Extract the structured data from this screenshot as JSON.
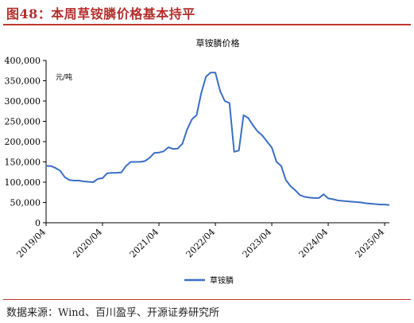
{
  "header": {
    "title": "图48：本周草铵膦价格基本持平"
  },
  "footer": {
    "source": "数据来源：Wind、百川盈孚、开源证券研究所"
  },
  "colors": {
    "series": "#3a6fc4",
    "accent": "#b32e2c"
  },
  "chart_data": {
    "type": "line",
    "title": "草铵膦价格",
    "unit_label": "元/吨",
    "ylim": [
      0,
      400000
    ],
    "y_ticks": [
      0,
      50000,
      100000,
      150000,
      200000,
      250000,
      300000,
      350000,
      400000
    ],
    "y_tick_labels": [
      "0",
      "50,000",
      "100,000",
      "150,000",
      "200,000",
      "250,000",
      "300,000",
      "350,000",
      "400,000"
    ],
    "x_range": [
      "2019-04",
      "2025-05"
    ],
    "x_ticks": [
      "2019-04",
      "2020-04",
      "2021-04",
      "2022-04",
      "2023-04",
      "2024-04",
      "2025-04"
    ],
    "x_tick_labels": [
      "2019/04",
      "2020/04",
      "2021/04",
      "2022/04",
      "2023/04",
      "2024/04",
      "2025/04"
    ],
    "legend_position": "bottom-center",
    "grid": false,
    "series": [
      {
        "name": "草铵膦",
        "points": [
          [
            "2019-04",
            140000
          ],
          [
            "2019-05",
            140000
          ],
          [
            "2019-06",
            135000
          ],
          [
            "2019-07",
            128000
          ],
          [
            "2019-08",
            112000
          ],
          [
            "2019-09",
            105000
          ],
          [
            "2019-10",
            104000
          ],
          [
            "2019-11",
            104000
          ],
          [
            "2019-12",
            102000
          ],
          [
            "2020-01",
            101000
          ],
          [
            "2020-02",
            100000
          ],
          [
            "2020-03",
            108000
          ],
          [
            "2020-04",
            110000
          ],
          [
            "2020-05",
            122000
          ],
          [
            "2020-06",
            123000
          ],
          [
            "2020-07",
            123000
          ],
          [
            "2020-08",
            124000
          ],
          [
            "2020-09",
            140000
          ],
          [
            "2020-10",
            150000
          ],
          [
            "2020-11",
            150000
          ],
          [
            "2020-12",
            150000
          ],
          [
            "2021-01",
            152000
          ],
          [
            "2021-02",
            160000
          ],
          [
            "2021-03",
            172000
          ],
          [
            "2021-04",
            173000
          ],
          [
            "2021-05",
            176000
          ],
          [
            "2021-06",
            186000
          ],
          [
            "2021-07",
            182000
          ],
          [
            "2021-08",
            183000
          ],
          [
            "2021-09",
            195000
          ],
          [
            "2021-10",
            230000
          ],
          [
            "2021-11",
            255000
          ],
          [
            "2021-12",
            265000
          ],
          [
            "2022-01",
            320000
          ],
          [
            "2022-02",
            360000
          ],
          [
            "2022-03",
            370000
          ],
          [
            "2022-04",
            370000
          ],
          [
            "2022-05",
            325000
          ],
          [
            "2022-06",
            300000
          ],
          [
            "2022-07",
            295000
          ],
          [
            "2022-08",
            175000
          ],
          [
            "2022-09",
            178000
          ],
          [
            "2022-10",
            265000
          ],
          [
            "2022-11",
            258000
          ],
          [
            "2022-12",
            240000
          ],
          [
            "2023-01",
            225000
          ],
          [
            "2023-02",
            215000
          ],
          [
            "2023-03",
            200000
          ],
          [
            "2023-04",
            185000
          ],
          [
            "2023-05",
            150000
          ],
          [
            "2023-06",
            140000
          ],
          [
            "2023-07",
            105000
          ],
          [
            "2023-08",
            90000
          ],
          [
            "2023-09",
            80000
          ],
          [
            "2023-10",
            68000
          ],
          [
            "2023-11",
            64000
          ],
          [
            "2023-12",
            62000
          ],
          [
            "2024-01",
            61000
          ],
          [
            "2024-02",
            61000
          ],
          [
            "2024-03",
            70000
          ],
          [
            "2024-04",
            60000
          ],
          [
            "2024-05",
            58000
          ],
          [
            "2024-06",
            55000
          ],
          [
            "2024-07",
            54000
          ],
          [
            "2024-08",
            53000
          ],
          [
            "2024-09",
            52000
          ],
          [
            "2024-10",
            51000
          ],
          [
            "2024-11",
            50000
          ],
          [
            "2024-12",
            48000
          ],
          [
            "2025-01",
            47000
          ],
          [
            "2025-02",
            46000
          ],
          [
            "2025-03",
            45000
          ],
          [
            "2025-04",
            45000
          ],
          [
            "2025-05",
            44000
          ]
        ]
      }
    ]
  }
}
